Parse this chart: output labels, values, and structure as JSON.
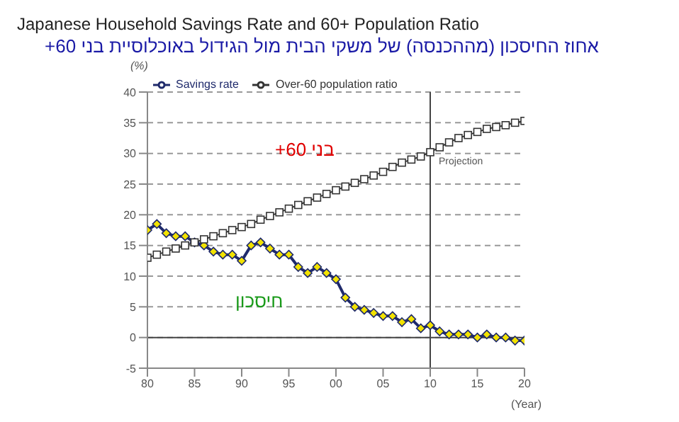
{
  "chart_data": {
    "type": "line",
    "title": "Japanese Household Savings Rate and 60+ Population Ratio",
    "subtitle": "אחוז החיסכון (מההכנסה) של משקי הבית מול הגידול באוכלוסיית בני 60+",
    "ylabel": "(%)",
    "xlabel": "(Year)",
    "x": [
      1980,
      1981,
      1982,
      1983,
      1984,
      1985,
      1986,
      1987,
      1988,
      1989,
      1990,
      1991,
      1992,
      1993,
      1994,
      1995,
      1996,
      1997,
      1998,
      1999,
      2000,
      2001,
      2002,
      2003,
      2004,
      2005,
      2006,
      2007,
      2008,
      2009,
      2010,
      2011,
      2012,
      2013,
      2014,
      2015,
      2016,
      2017,
      2018,
      2019,
      2020
    ],
    "series": [
      {
        "name": "Savings rate",
        "color": "#1f2a6b",
        "marker": "diamond",
        "values": [
          17.5,
          18.5,
          17,
          16.5,
          16.5,
          15.5,
          15,
          14,
          13.5,
          13.5,
          12.5,
          15,
          15.5,
          14.5,
          13.5,
          13.5,
          11.5,
          10.5,
          11.5,
          10.5,
          9.5,
          6.5,
          5,
          4.5,
          4,
          3.5,
          3.5,
          2.5,
          3,
          1.5,
          2,
          1,
          0.5,
          0.5,
          0.5,
          0,
          0.5,
          0,
          0,
          -0.5,
          -0.5
        ]
      },
      {
        "name": "Over-60 population ratio",
        "color": "#333333",
        "marker": "square",
        "values": [
          13,
          13.5,
          14,
          14.5,
          15,
          15.5,
          16,
          16.5,
          17,
          17.5,
          18,
          18.5,
          19.2,
          19.8,
          20.4,
          21,
          21.6,
          22.2,
          22.8,
          23.4,
          24,
          24.6,
          25.2,
          25.8,
          26.4,
          27,
          27.8,
          28.5,
          29,
          29.5,
          30.2,
          31,
          31.8,
          32.5,
          33,
          33.5,
          34,
          34.3,
          34.6,
          35,
          35.3
        ]
      }
    ],
    "xlim": [
      1980,
      2020
    ],
    "xticks": [
      {
        "value": 1980,
        "label": "80"
      },
      {
        "value": 1985,
        "label": "85"
      },
      {
        "value": 1990,
        "label": "90"
      },
      {
        "value": 1995,
        "label": "95"
      },
      {
        "value": 2000,
        "label": "00"
      },
      {
        "value": 2005,
        "label": "05"
      },
      {
        "value": 2010,
        "label": "10"
      },
      {
        "value": 2015,
        "label": "15"
      },
      {
        "value": 2020,
        "label": "20"
      }
    ],
    "ylim": [
      -5,
      40
    ],
    "yticks": [
      -5,
      0,
      5,
      10,
      15,
      20,
      25,
      30,
      35,
      40
    ],
    "grid": "y",
    "legend": "top left",
    "ref_lines": [
      {
        "axis": "x",
        "value": 2010,
        "label": "Projection"
      }
    ],
    "annotations": [
      "בני 60+",
      "חיסכון"
    ]
  }
}
